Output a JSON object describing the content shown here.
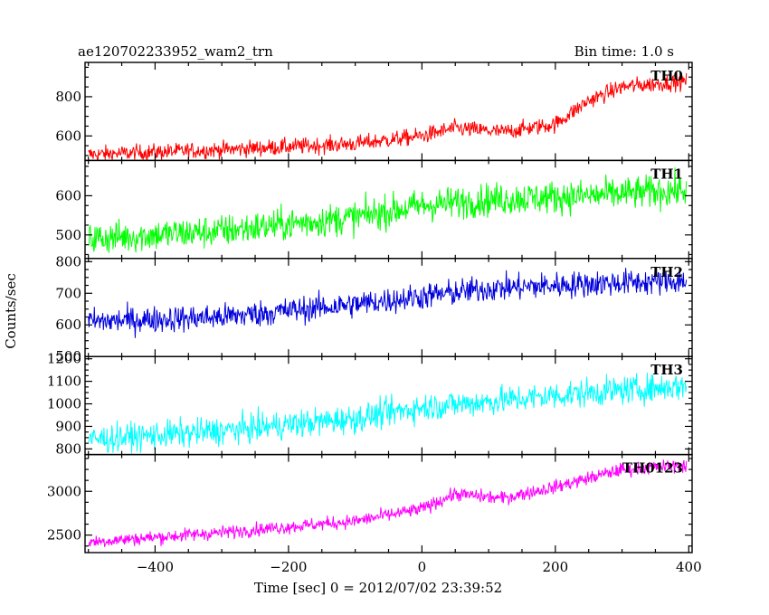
{
  "header": {
    "left_title": "ae120702233952_wam2_trn",
    "right_title": "Bin time: 1.0 s"
  },
  "chart_data": {
    "type": "line",
    "xlabel": "Time [sec] 0 = 2012/07/02 23:39:52",
    "ylabel": "Counts/sec",
    "xlim": [
      -505,
      405
    ],
    "xticks": [
      -400,
      -200,
      0,
      200,
      400
    ],
    "xtick_labels": [
      "−400",
      "−200",
      "0",
      "200",
      "400"
    ],
    "series": [
      {
        "name": "TH0",
        "color": "#ff0000",
        "ylim": [
          475,
          975
        ],
        "yticks": [
          600,
          800
        ],
        "trend": [
          [
            -500,
            505
          ],
          [
            -300,
            530
          ],
          [
            -100,
            560
          ],
          [
            0,
            600
          ],
          [
            50,
            640
          ],
          [
            120,
            620
          ],
          [
            200,
            660
          ],
          [
            250,
            780
          ],
          [
            300,
            850
          ],
          [
            400,
            880
          ]
        ],
        "noise": 30
      },
      {
        "name": "TH1",
        "color": "#00ff00",
        "ylim": [
          440,
          690
        ],
        "yticks": [
          500,
          600
        ],
        "trend": [
          [
            -500,
            490
          ],
          [
            -300,
            510
          ],
          [
            -100,
            545
          ],
          [
            0,
            575
          ],
          [
            100,
            590
          ],
          [
            250,
            600
          ],
          [
            400,
            615
          ]
        ],
        "noise": 30
      },
      {
        "name": "TH2",
        "color": "#0000dd",
        "ylim": [
          500,
          810
        ],
        "yticks": [
          500,
          600,
          700,
          800
        ],
        "trend": [
          [
            -500,
            610
          ],
          [
            -300,
            625
          ],
          [
            -100,
            665
          ],
          [
            0,
            690
          ],
          [
            100,
            715
          ],
          [
            250,
            730
          ],
          [
            400,
            740
          ]
        ],
        "noise": 30
      },
      {
        "name": "TH3",
        "color": "#00ffff",
        "ylim": [
          775,
          1210
        ],
        "yticks": [
          800,
          900,
          1000,
          1100,
          1200
        ],
        "trend": [
          [
            -500,
            840
          ],
          [
            -300,
            880
          ],
          [
            -100,
            935
          ],
          [
            0,
            985
          ],
          [
            100,
            1010
          ],
          [
            250,
            1050
          ],
          [
            400,
            1080
          ]
        ],
        "noise": 45
      },
      {
        "name": "TH0123",
        "color": "#ff00ff",
        "ylim": [
          2300,
          3420
        ],
        "yticks": [
          2500,
          3000
        ],
        "trend": [
          [
            -500,
            2420
          ],
          [
            -300,
            2530
          ],
          [
            -100,
            2660
          ],
          [
            0,
            2800
          ],
          [
            50,
            2970
          ],
          [
            120,
            2920
          ],
          [
            200,
            3050
          ],
          [
            300,
            3250
          ],
          [
            400,
            3300
          ]
        ],
        "noise": 55
      }
    ]
  }
}
